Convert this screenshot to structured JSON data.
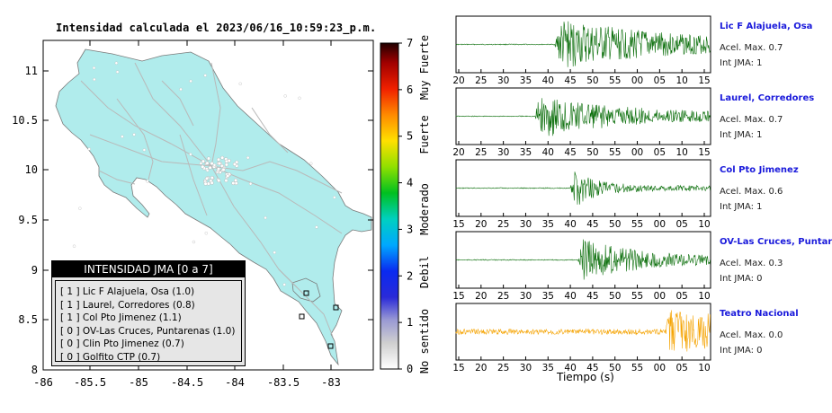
{
  "map": {
    "title": "Intensidad calculada el 2023/06/16_10:59:23_p.m.",
    "x_ticks": [
      "-86",
      "-85.5",
      "-85",
      "-84.5",
      "-84",
      "-83.5",
      "-83"
    ],
    "y_ticks": [
      "11",
      "10.5",
      "10",
      "9.5",
      "9",
      "8.5",
      "8"
    ],
    "land_color": "#b0ecec",
    "colors": {
      "road": "#b9b9b9",
      "station_square": "#000000",
      "city_dot": "#ffffff"
    }
  },
  "colorbar": {
    "ticks": [
      "0",
      "1",
      "2",
      "3",
      "4",
      "5",
      "6",
      "7"
    ],
    "category_labels": [
      "No sentido",
      "Debil",
      "Moderado",
      "Fuerte",
      "Muy Fuerte"
    ]
  },
  "legend": {
    "title": "INTENSIDAD JMA [0 a 7]",
    "items": [
      "[ 1 ]  Lic F Alajuela, Osa (1.0)",
      "[ 1 ]  Laurel, Corredores (0.8)",
      "[ 1 ]  Col Pto Jimenez (1.1)",
      "[ 0 ]  OV-Las Cruces, Puntarenas (1.0)",
      "[ 0 ]  Clin Pto Jimenez (0.7)",
      "[ 0 ]  Golfito CTP (0.7)"
    ]
  },
  "traces": [
    {
      "name": "Lic F Alajuela, Osa",
      "acel": "Acel. Max. 0.7",
      "jma": "Int JMA: 1",
      "color": "#0a6e0a",
      "ticks": [
        "20",
        "25",
        "30",
        "35",
        "40",
        "45",
        "50",
        "55",
        "00",
        "05",
        "10",
        "15"
      ]
    },
    {
      "name": "Laurel, Corredores",
      "acel": "Acel. Max. 0.7",
      "jma": "Int JMA: 1",
      "color": "#0a6e0a",
      "ticks": [
        "20",
        "25",
        "30",
        "35",
        "40",
        "45",
        "50",
        "55",
        "00",
        "05",
        "10",
        "15"
      ]
    },
    {
      "name": "Col Pto Jimenez",
      "acel": "Acel. Max. 0.6",
      "jma": "Int JMA: 1",
      "color": "#0a6e0a",
      "ticks": [
        "15",
        "20",
        "25",
        "30",
        "35",
        "40",
        "45",
        "50",
        "55",
        "00",
        "05",
        "10"
      ]
    },
    {
      "name": "OV-Las Cruces, Puntar",
      "acel": "Acel. Max. 0.3",
      "jma": "Int JMA: 0",
      "color": "#0a6e0a",
      "ticks": [
        "15",
        "20",
        "25",
        "30",
        "35",
        "40",
        "45",
        "50",
        "55",
        "00",
        "05",
        "10"
      ]
    },
    {
      "name": "Teatro Nacional",
      "acel": "Acel. Max. 0.0",
      "jma": "Int JMA: 0",
      "color": "#f5a300",
      "ticks": [
        "15",
        "20",
        "25",
        "30",
        "35",
        "40",
        "45",
        "50",
        "55",
        "00",
        "05",
        "10"
      ]
    }
  ],
  "xlabel": "Tiempo (s)"
}
